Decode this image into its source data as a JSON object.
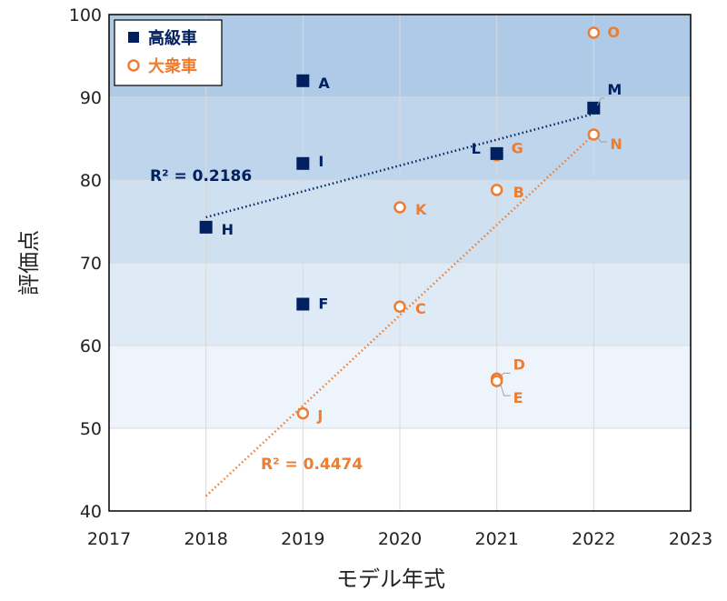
{
  "chart_data": {
    "type": "scatter",
    "xlabel": "モデル年式",
    "ylabel": "評価点",
    "xlim": [
      2017,
      2023
    ],
    "ylim": [
      40,
      100
    ],
    "xticks": [
      2017,
      2018,
      2019,
      2020,
      2021,
      2022,
      2023
    ],
    "yticks": [
      40,
      50,
      60,
      70,
      80,
      90,
      100
    ],
    "bands": [
      {
        "from": 90,
        "to": 100,
        "color": "#aecae7"
      },
      {
        "from": 80,
        "to": 90,
        "color": "#bed5ec"
      },
      {
        "from": 70,
        "to": 80,
        "color": "#cfe0f1"
      },
      {
        "from": 60,
        "to": 70,
        "color": "#deeaf6"
      },
      {
        "from": 50,
        "to": 60,
        "color": "#edf4fb"
      },
      {
        "from": 40,
        "to": 50,
        "color": "#ffffff"
      }
    ],
    "legend_position": "top-left",
    "series": [
      {
        "name": "高級車",
        "marker": "square",
        "color": "#002060",
        "points": [
          {
            "label": "A",
            "x": 2019,
            "y": 92
          },
          {
            "label": "I",
            "x": 2019,
            "y": 82
          },
          {
            "label": "H",
            "x": 2018,
            "y": 74.3
          },
          {
            "label": "F",
            "x": 2019,
            "y": 65
          },
          {
            "label": "L",
            "x": 2021,
            "y": 83.2
          },
          {
            "label": "M",
            "x": 2022,
            "y": 88.7
          }
        ],
        "trendline": {
          "r2_label": "R² = 0.2186",
          "from": [
            2018,
            75.5
          ],
          "to": [
            2022,
            88
          ]
        }
      },
      {
        "name": "大衆車",
        "marker": "circle",
        "color": "#ed7d31",
        "points": [
          {
            "label": "O",
            "x": 2022,
            "y": 97.8
          },
          {
            "label": "N",
            "x": 2022,
            "y": 85.5
          },
          {
            "label": "G",
            "x": 2021,
            "y": 83
          },
          {
            "label": "B",
            "x": 2021,
            "y": 78.8
          },
          {
            "label": "K",
            "x": 2020,
            "y": 76.7
          },
          {
            "label": "C",
            "x": 2020,
            "y": 64.7
          },
          {
            "label": "D",
            "x": 2021,
            "y": 56
          },
          {
            "label": "E",
            "x": 2021,
            "y": 55.7
          },
          {
            "label": "J",
            "x": 2019,
            "y": 51.8
          }
        ],
        "trendline": {
          "r2_label": "R² = 0.4474",
          "from": [
            2018,
            41.8
          ],
          "to": [
            2022,
            85.5
          ]
        }
      }
    ]
  }
}
